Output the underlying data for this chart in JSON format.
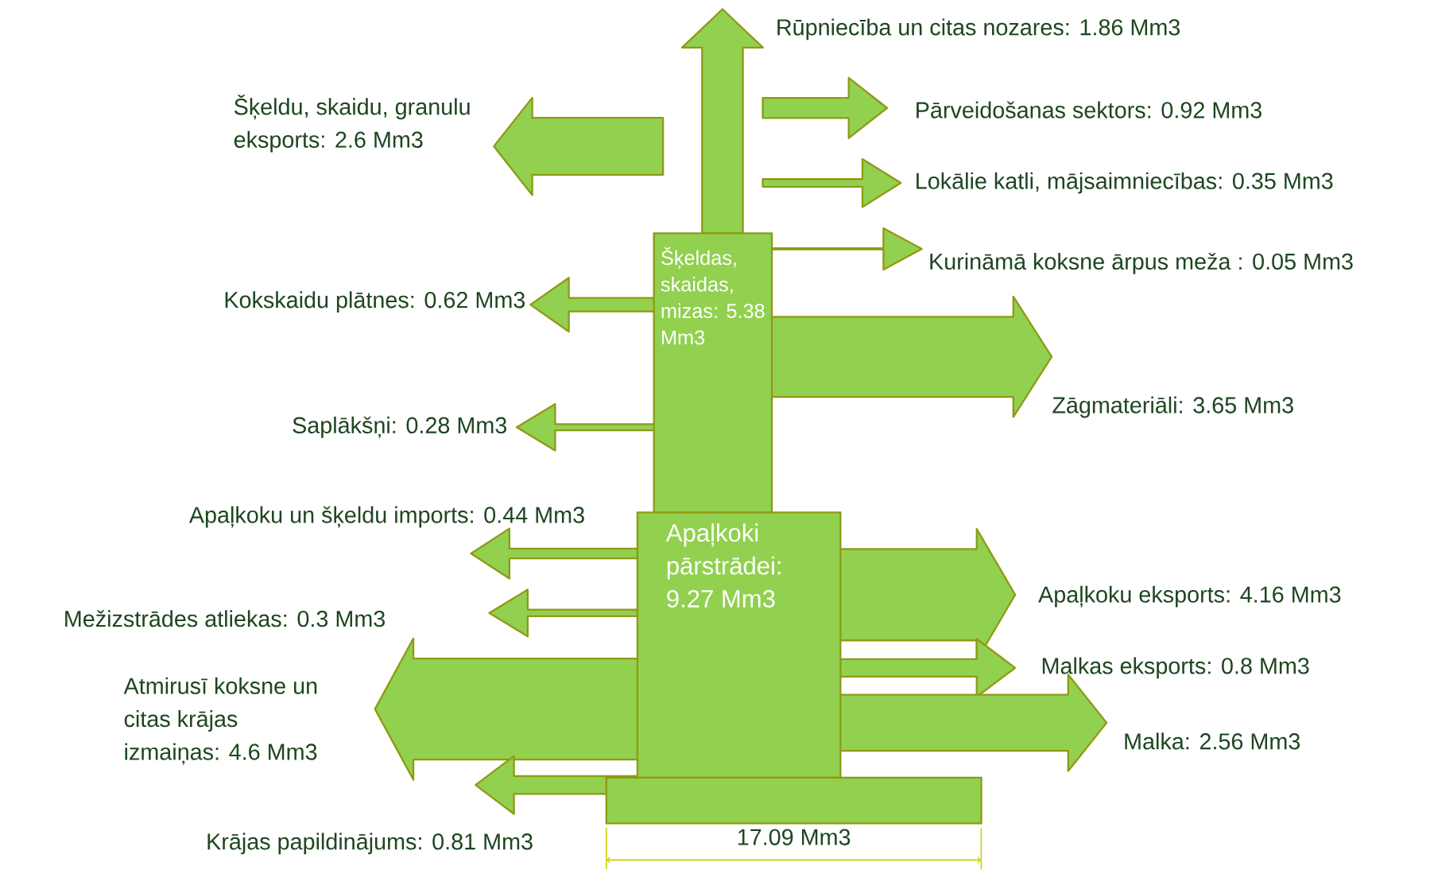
{
  "chart_data": {
    "type": "other",
    "categories": [
      "Rūpniecība un citas nozares",
      "Pārveidošanas sektors",
      "Lokālie katli, mājsaimniecības",
      "Kurināmā koksne ārpus meža",
      "Šķeldu, skaidu, granulu eksports",
      "Kokskaidu plātnes",
      "Saplākšņi",
      "Apaļkoku un šķeldu imports",
      "Mežizstrādes atliekas",
      "Atmirusī koksne un citas krājas izmaiņas",
      "Krājas papildinājums",
      "Zāgmateriāli",
      "Apaļkoku eksports",
      "Malkas eksports",
      "Malka"
    ],
    "value_labels": [
      ": 1.86 Mm3",
      ": 0.92 Mm3",
      ": 0.35 Mm3",
      " : 0.05 Mm3",
      ": 2.6 Mm3",
      ": 0.62 Mm3",
      ": 0.28 Mm3",
      ": 0.44 Mm3",
      ": 0.3 Mm3",
      ": 4.6 Mm3",
      ": 0.81 Mm3",
      ": 3.65 Mm3",
      ": 4.16 Mm3",
      ": 0.8 Mm3",
      ": 2.56 Mm3"
    ],
    "values": [
      1.86,
      0.92,
      0.35,
      0.05,
      2.6,
      0.62,
      0.28,
      0.44,
      0.3,
      4.6,
      0.81,
      3.65,
      4.16,
      0.8,
      2.56
    ],
    "color": "#92d050",
    "annotations": [
      "Šķeldas, skaidas, mizas: 5.38 Mm3",
      "Apaļkoki pārstrādei: 9.27 Mm3",
      "17.09 Mm3"
    ]
  }
}
